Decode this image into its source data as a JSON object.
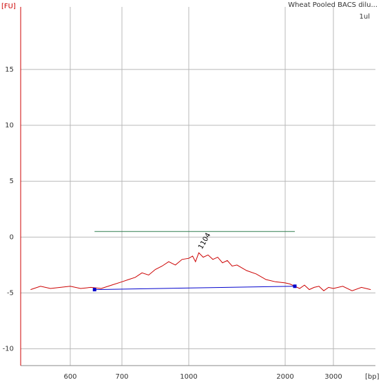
{
  "chart_data": {
    "type": "line",
    "title": "Wheat Pooled BACS dilu...",
    "subtitle": "1ul",
    "y_label": "[FU]",
    "x_label": "[bp]",
    "color": "#cc0000",
    "x": [
      520,
      540,
      560,
      580,
      600,
      620,
      640,
      660,
      680,
      700,
      730,
      760,
      790,
      820,
      850,
      880,
      910,
      940,
      970,
      1000,
      1040,
      1070,
      1104,
      1150,
      1200,
      1250,
      1300,
      1350,
      1400,
      1450,
      1500,
      1600,
      1700,
      1800,
      1900,
      2000,
      2100,
      2200,
      2300,
      2400,
      2500,
      2600,
      2700,
      2800,
      2900,
      3000,
      3200,
      3400,
      3600,
      3800
    ],
    "values": [
      -4.7,
      -4.4,
      -4.6,
      -4.5,
      -4.4,
      -4.6,
      -4.5,
      -4.6,
      -4.3,
      -4.0,
      -3.8,
      -3.6,
      -3.2,
      -3.4,
      -2.9,
      -2.6,
      -2.2,
      -2.5,
      -2.0,
      -1.9,
      -1.7,
      -2.2,
      -1.4,
      -1.8,
      -1.6,
      -2.0,
      -1.8,
      -2.3,
      -2.1,
      -2.6,
      -2.5,
      -3.0,
      -3.3,
      -3.8,
      -4.0,
      -4.1,
      -4.2,
      -4.4,
      -4.6,
      -4.3,
      -4.7,
      -4.5,
      -4.4,
      -4.8,
      -4.5,
      -4.6,
      -4.4,
      -4.8,
      -4.5,
      -4.7
    ],
    "baseline": {
      "x": [
        647,
        2200
      ],
      "y": [
        -4.7,
        -4.4
      ],
      "color": "#0000cc"
    },
    "marker_line": {
      "x": [
        647,
        2200
      ],
      "y": 0.5,
      "color": "#2e7d4f"
    },
    "annotations": [
      {
        "text": "1104",
        "x": 1104,
        "y": -1.4
      }
    ],
    "xlim": [
      500,
      3900
    ],
    "xticks": [
      600,
      700,
      1000,
      2000,
      3000
    ],
    "ylim": [
      -11.5,
      20.6
    ],
    "yticks": [
      -10,
      -5,
      0,
      5,
      10,
      15
    ],
    "grid": true
  }
}
